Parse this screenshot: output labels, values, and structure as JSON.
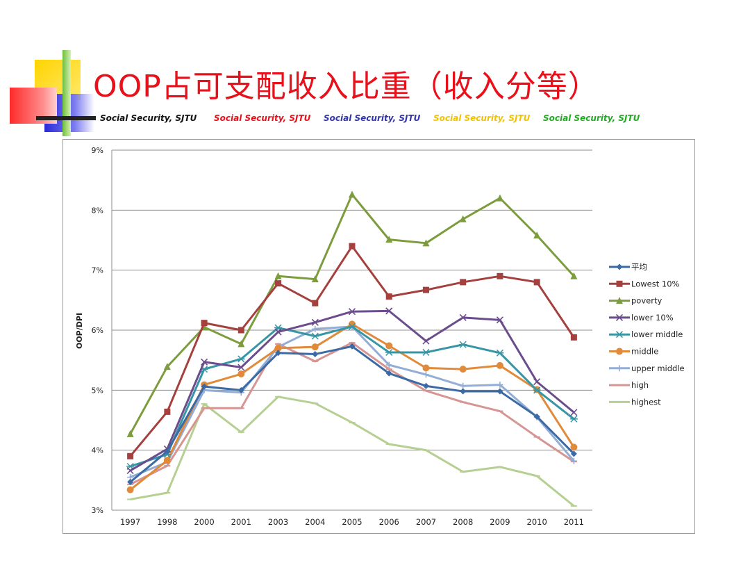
{
  "slide": {
    "title": "OOP占可支配收入比重（收入分等）",
    "banner": [
      {
        "text": "Social Security, SJTU",
        "color": "#111111"
      },
      {
        "text": "Social Security, SJTU",
        "color": "#e8101a"
      },
      {
        "text": "Social Security, SJTU",
        "color": "#3333aa"
      },
      {
        "text": "Social Security, SJTU",
        "color": "#f2c200"
      },
      {
        "text": "Social Security, SJTU",
        "color": "#22aa22"
      }
    ]
  },
  "chart_data": {
    "type": "line",
    "title": "",
    "xlabel": "",
    "ylabel": "OOP/DPI",
    "categories": [
      "1997",
      "1998",
      "2000",
      "2001",
      "2003",
      "2004",
      "2005",
      "2006",
      "2007",
      "2008",
      "2009",
      "2010",
      "2011"
    ],
    "yticks": [
      "3%",
      "4%",
      "5%",
      "6%",
      "7%",
      "8%",
      "9%"
    ],
    "ylim": [
      3,
      9
    ],
    "grid": true,
    "legend_position": "right",
    "series": [
      {
        "name": "平均",
        "color": "#3b6aa5",
        "marker": "diamond",
        "values": [
          3.47,
          3.98,
          5.06,
          5.0,
          5.62,
          5.6,
          5.73,
          5.28,
          5.07,
          4.98,
          4.98,
          4.56,
          3.94
        ]
      },
      {
        "name": "Lowest 10%",
        "color": "#a4403e",
        "marker": "square",
        "values": [
          3.9,
          4.64,
          6.12,
          6.0,
          6.78,
          6.45,
          7.4,
          6.56,
          6.67,
          6.8,
          6.9,
          6.8,
          5.88
        ]
      },
      {
        "name": "poverty",
        "color": "#7d9c3d",
        "marker": "triangle",
        "values": [
          4.27,
          5.39,
          6.05,
          5.77,
          6.9,
          6.85,
          8.26,
          7.51,
          7.45,
          7.85,
          8.2,
          7.58,
          6.9
        ]
      },
      {
        "name": "lower 10%",
        "color": "#6b4c8c",
        "marker": "x",
        "values": [
          3.66,
          4.02,
          5.47,
          5.38,
          5.97,
          6.13,
          6.31,
          6.32,
          5.82,
          6.21,
          6.17,
          5.14,
          4.63
        ]
      },
      {
        "name": "lower middle",
        "color": "#3696a6",
        "marker": "star",
        "values": [
          3.73,
          3.93,
          5.35,
          5.52,
          6.04,
          5.9,
          6.06,
          5.63,
          5.63,
          5.76,
          5.62,
          5.0,
          4.52
        ]
      },
      {
        "name": "middle",
        "color": "#e08a3a",
        "marker": "circle",
        "values": [
          3.34,
          3.83,
          5.09,
          5.27,
          5.7,
          5.72,
          6.1,
          5.74,
          5.37,
          5.35,
          5.41,
          5.01,
          4.05
        ]
      },
      {
        "name": "upper middle",
        "color": "#93aed6",
        "marker": "plus",
        "values": [
          3.55,
          3.8,
          5.0,
          4.96,
          5.72,
          6.02,
          6.06,
          5.42,
          5.26,
          5.07,
          5.09,
          4.55,
          3.82
        ]
      },
      {
        "name": "high",
        "color": "#d69592",
        "marker": "dash",
        "values": [
          3.43,
          3.74,
          4.7,
          4.7,
          5.77,
          5.48,
          5.79,
          5.35,
          4.99,
          4.8,
          4.65,
          4.22,
          3.81
        ]
      },
      {
        "name": "highest",
        "color": "#b6cf92",
        "marker": "dash",
        "values": [
          3.18,
          3.29,
          4.77,
          4.3,
          4.89,
          4.78,
          4.46,
          4.1,
          4.0,
          3.64,
          3.72,
          3.57,
          3.07
        ]
      }
    ]
  }
}
